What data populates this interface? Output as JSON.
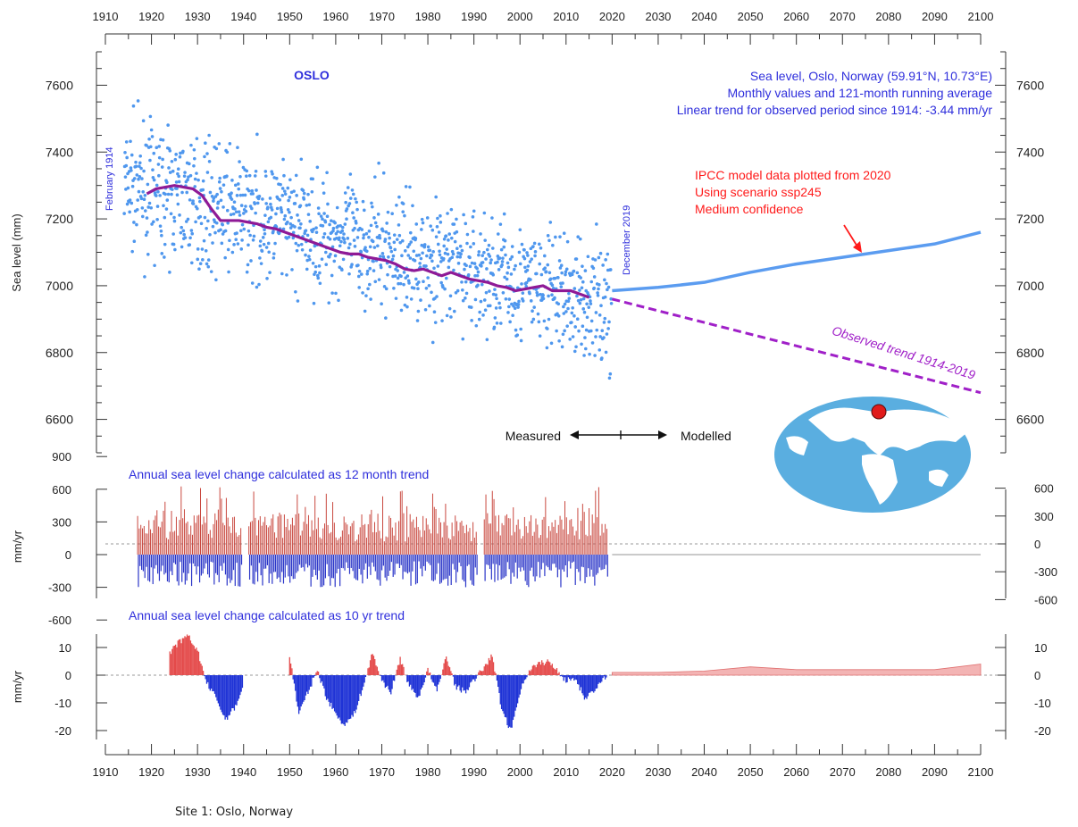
{
  "caption": "Site 1: Oslo, Norway",
  "colors": {
    "monthly_points": "#4f97ee",
    "running_average": "#8f1a96",
    "modelled": "#5b9cf0",
    "observed_trend": "#a020c8",
    "info_text": "#2f2fdc",
    "ipcc_text": "#ff1a1a",
    "positive_bar": "#c9483f",
    "negative_bar": "#2a35c8",
    "positive_area": "#e44a4a",
    "negative_area": "#1f33d6",
    "ocean": "#5aaee0",
    "land": "#ffffff",
    "marker": "#e01b1b"
  },
  "chart_data": [
    {
      "type": "scatter",
      "title": "OSLO",
      "ylabel": "Sea level (mm)",
      "xlim": [
        1910,
        2100
      ],
      "ylim": [
        6500,
        7700
      ],
      "x_ticks": [
        1910,
        1920,
        1930,
        1940,
        1950,
        1960,
        1970,
        1980,
        1990,
        2000,
        2010,
        2020,
        2030,
        2040,
        2050,
        2060,
        2070,
        2080,
        2090,
        2100
      ],
      "y_ticks_left": [
        6600,
        6800,
        7000,
        7200,
        7400,
        7600
      ],
      "y_ticks_right": [
        "6600",
        "6800",
        "7000",
        "7200",
        "7400",
        "7600"
      ],
      "info_lines": [
        "Sea level, Oslo, Norway (59.91°N, 10.73°E)",
        "Monthly values and 121-month running average",
        "Linear trend for observed period since 1914: -3.44 mm/yr"
      ],
      "ipcc_lines": [
        "IPCC model data plotted from 2020",
        "Using scenario ssp245",
        "Medium confidence"
      ],
      "start_label": "February 1914",
      "end_label": "December 2019",
      "measured_label": "Measured",
      "modelled_label": "Modelled",
      "trend_label": "Observed trend 1914-2019",
      "monthly_range": [
        1914.1,
        2019.9
      ],
      "running_average": {
        "x": [
          1919,
          1921,
          1923,
          1925,
          1927,
          1929,
          1931,
          1933,
          1935,
          1937,
          1939,
          1941,
          1943,
          1945,
          1947,
          1949,
          1951,
          1953,
          1955,
          1957,
          1959,
          1961,
          1963,
          1965,
          1967,
          1969,
          1971,
          1973,
          1975,
          1977,
          1979,
          1981,
          1983,
          1985,
          1987,
          1989,
          1991,
          1993,
          1995,
          1997,
          1999,
          2001,
          2003,
          2005,
          2007,
          2009,
          2011,
          2013,
          2015
        ],
        "y": [
          7275,
          7290,
          7295,
          7300,
          7295,
          7290,
          7270,
          7230,
          7195,
          7195,
          7195,
          7190,
          7185,
          7175,
          7170,
          7160,
          7150,
          7140,
          7130,
          7120,
          7110,
          7100,
          7095,
          7095,
          7085,
          7080,
          7075,
          7065,
          7050,
          7045,
          7050,
          7040,
          7030,
          7040,
          7030,
          7020,
          7015,
          7010,
          7000,
          6995,
          6985,
          6990,
          6995,
          7000,
          6985,
          6985,
          6985,
          6975,
          6965
        ]
      },
      "modelled": {
        "x": [
          2020,
          2030,
          2040,
          2050,
          2060,
          2070,
          2080,
          2090,
          2100
        ],
        "y": [
          6985,
          6995,
          7010,
          7040,
          7065,
          7085,
          7105,
          7125,
          7160
        ]
      },
      "observed_trend": {
        "x": [
          2020,
          2100
        ],
        "y": [
          6960,
          6680
        ]
      }
    },
    {
      "type": "bar",
      "title": "Annual sea level change calculated as 12 month trend",
      "ylabel": "mm/yr",
      "xlim": [
        1910,
        2100
      ],
      "y_ticks_left": [
        "900",
        "600",
        "300",
        "0",
        "-300",
        "-600"
      ],
      "y_ticks_right": [
        "600",
        "300",
        "0",
        "-300",
        "-600"
      ],
      "observed_range": [
        1917,
        2019
      ],
      "positive_typical_max": 700,
      "negative_typical_min": -450
    },
    {
      "type": "area",
      "title": "Annual sea level change calculated as 10 yr trend",
      "ylabel": "mm/yr",
      "xlim": [
        1910,
        2100
      ],
      "ylim": [
        -22,
        16
      ],
      "y_ticks_left": [
        10,
        0,
        -10,
        -20
      ],
      "y_ticks_right": [
        10,
        0,
        -10,
        -20
      ],
      "x_ticks": [
        1910,
        1920,
        1930,
        1940,
        1950,
        1960,
        1970,
        1980,
        1990,
        2000,
        2010,
        2020,
        2030,
        2040,
        2050,
        2060,
        2070,
        2080,
        2090,
        2100
      ],
      "x": [
        1924,
        1926,
        1928,
        1930,
        1932,
        1934,
        1936,
        1938,
        1940,
        1950,
        1952,
        1954,
        1956,
        1958,
        1960,
        1962,
        1964,
        1966,
        1968,
        1970,
        1972,
        1974,
        1976,
        1978,
        1980,
        1982,
        1984,
        1986,
        1988,
        1990,
        1994,
        1996,
        1998,
        2000,
        2002,
        2004,
        2006,
        2008,
        2010,
        2012,
        2014,
        2016,
        2018,
        2019
      ],
      "values": [
        8,
        12,
        14,
        9,
        -3,
        -8,
        -16,
        -12,
        -4,
        7,
        -14,
        -6,
        2,
        -8,
        -14,
        -18,
        -14,
        -4,
        8,
        -2,
        -6,
        6,
        -4,
        -8,
        2,
        -6,
        7,
        -4,
        -6,
        -2,
        7,
        -12,
        -20,
        -6,
        2,
        4,
        5,
        2,
        -2,
        -1,
        -8,
        -6,
        -2,
        1
      ],
      "modelled_x": [
        2020,
        2030,
        2040,
        2050,
        2060,
        2070,
        2080,
        2090,
        2100
      ],
      "modelled_values": [
        1,
        1,
        1.5,
        3,
        2,
        2,
        2,
        2,
        4
      ]
    }
  ]
}
